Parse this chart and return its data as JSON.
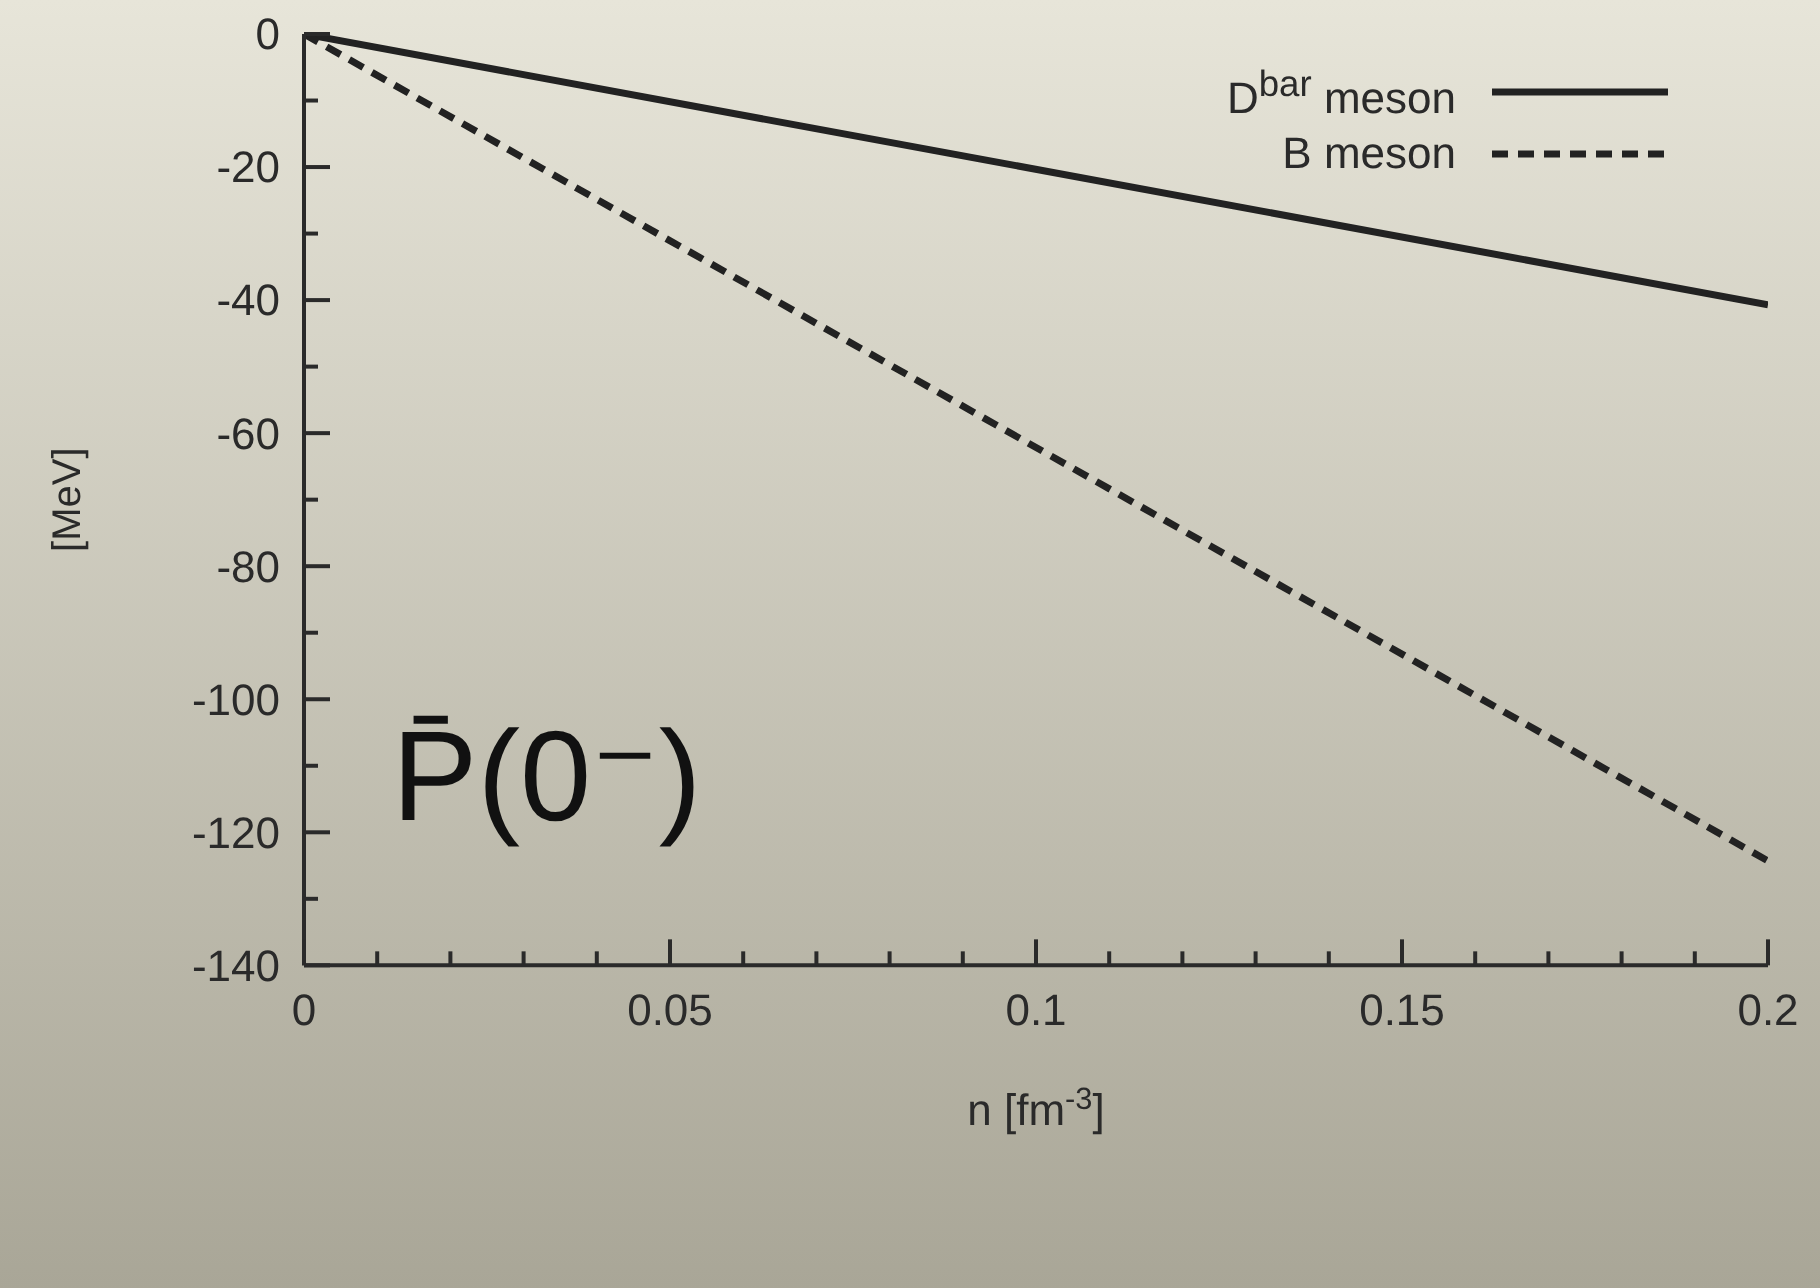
{
  "chart_data": {
    "type": "line",
    "xlabel": "n [fm$^{-3}$]",
    "ylabel": "[MeV]",
    "xlim": [
      0,
      0.2
    ],
    "xticks": [
      0,
      {
        "value": 0.01,
        "label": null
      },
      {
        "value": 0.02,
        "label": null
      },
      {
        "value": 0.03,
        "label": null
      },
      {
        "value": 0.04,
        "label": null
      },
      0.05,
      {
        "value": 0.06,
        "label": null
      },
      {
        "value": 0.07,
        "label": null
      },
      {
        "value": 0.08,
        "label": null
      },
      {
        "value": 0.09,
        "label": null
      },
      0.1,
      {
        "value": 0.11,
        "label": null
      },
      {
        "value": 0.12,
        "label": null
      },
      {
        "value": 0.13,
        "label": null
      },
      {
        "value": 0.14,
        "label": null
      },
      0.15,
      {
        "value": 0.16,
        "label": null
      },
      {
        "value": 0.17,
        "label": null
      },
      {
        "value": 0.18,
        "label": null
      },
      {
        "value": 0.19,
        "label": null
      },
      0.2
    ],
    "ylim": [
      -140,
      0
    ],
    "yticks": [
      -140,
      {
        "value": -130,
        "label": null
      },
      -120,
      {
        "value": -110,
        "label": null
      },
      -100,
      {
        "value": -90,
        "label": null
      },
      -80,
      {
        "value": -70,
        "label": null
      },
      -60,
      {
        "value": -50,
        "label": null
      },
      -40,
      {
        "value": -30,
        "label": null
      },
      -20,
      {
        "value": -10,
        "label": null
      },
      0
    ],
    "x": [
      0,
      0.2
    ],
    "series": [
      {
        "name": "D$^{bar}$ meson",
        "color": "#222222",
        "values": [
          0,
          -40.7
        ],
        "line_style": "solid"
      },
      {
        "name": "B meson",
        "color": "#222222",
        "values": [
          0,
          -124.3
        ],
        "line_style": "dashed"
      }
    ],
    "legend": "top right",
    "marker": "none",
    "annotations": [
      "P̄(0⁻)"
    ]
  }
}
